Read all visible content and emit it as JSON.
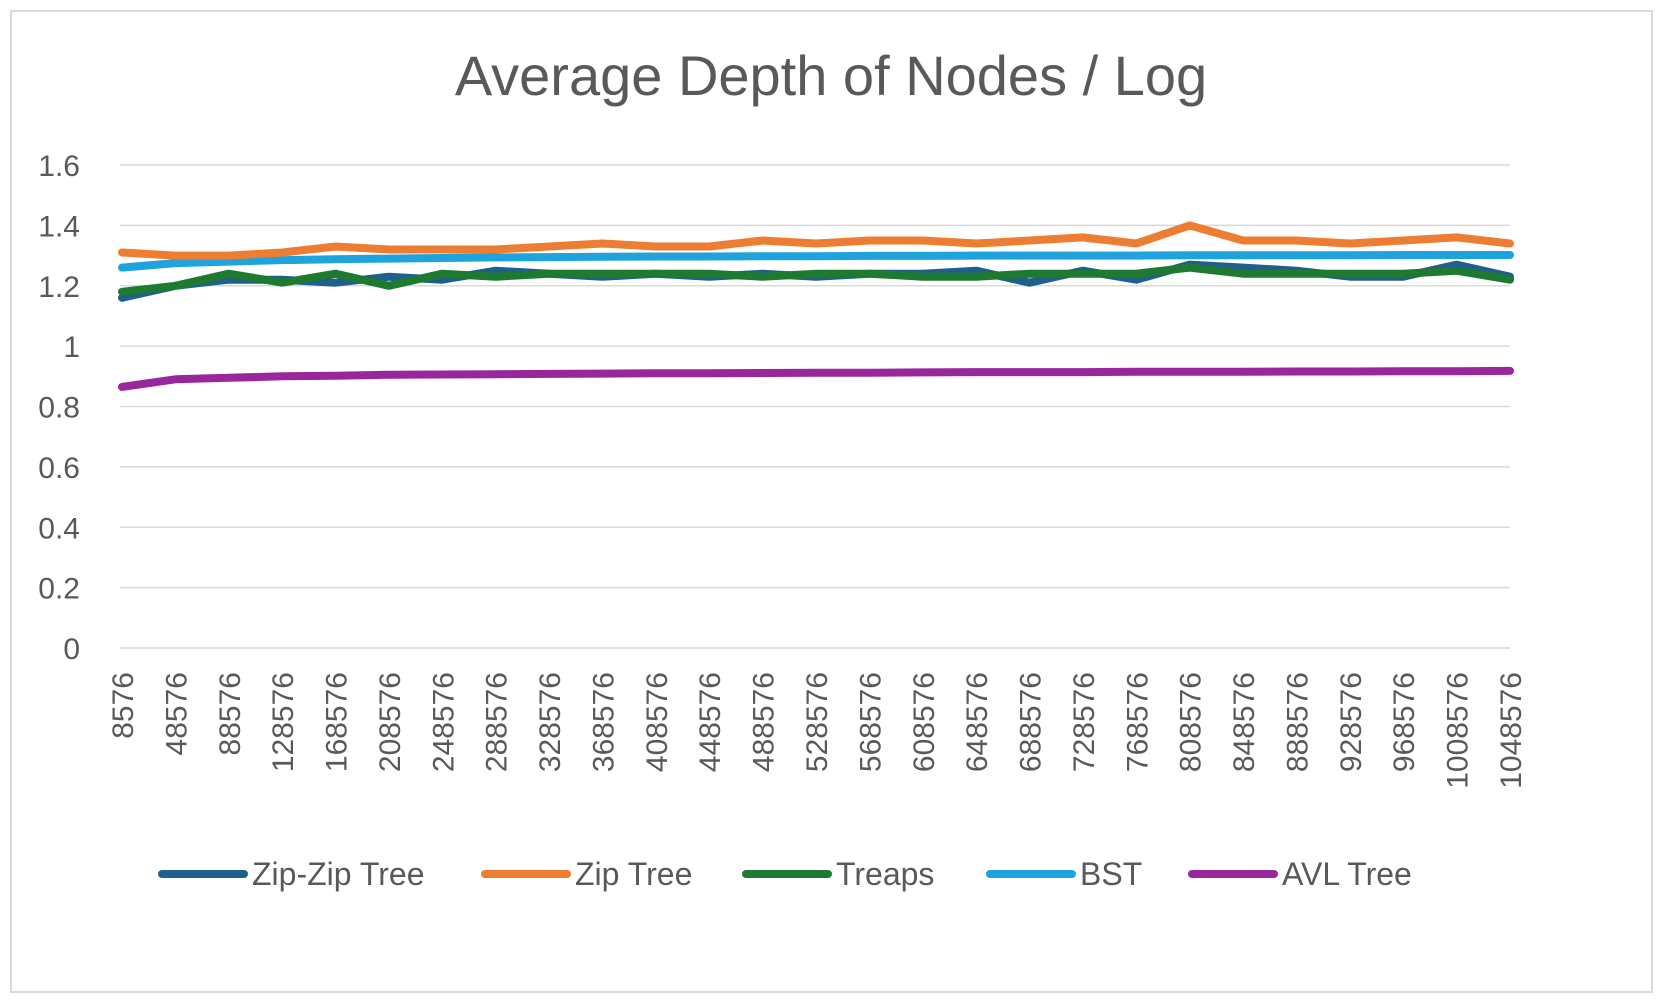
{
  "chart_data": {
    "type": "line",
    "title": "Average Depth of Nodes / Log",
    "xlabel": "",
    "ylabel": "",
    "ylim": [
      0,
      1.6
    ],
    "yticks": [
      "0",
      "0.2",
      "0.4",
      "0.6",
      "0.8",
      "1",
      "1.2",
      "1.4",
      "1.6"
    ],
    "xticks": [
      "8576",
      "48576",
      "88576",
      "128576",
      "168576",
      "208576",
      "248576",
      "288576",
      "328576",
      "368576",
      "408576",
      "448576",
      "488576",
      "528576",
      "568576",
      "608576",
      "648576",
      "688576",
      "728576",
      "768576",
      "808576",
      "848576",
      "888576",
      "928576",
      "968576",
      "1008576",
      "1048576"
    ],
    "x_start": 8576,
    "x_end": 1048576,
    "grid": true,
    "legend_position": "bottom",
    "series": [
      {
        "name": "Zip-Zip Tree",
        "color": "#1f5f8b",
        "x": [
          8576,
          48576,
          88576,
          128576,
          168576,
          208576,
          248576,
          288576,
          328576,
          368576,
          408576,
          448576,
          488576,
          528576,
          568576,
          608576,
          648576,
          688576,
          728576,
          768576,
          808576,
          848576,
          888576,
          928576,
          968576,
          1008576,
          1048576
        ],
        "values": [
          1.16,
          1.2,
          1.22,
          1.22,
          1.21,
          1.23,
          1.22,
          1.25,
          1.24,
          1.23,
          1.24,
          1.23,
          1.24,
          1.23,
          1.24,
          1.24,
          1.25,
          1.21,
          1.25,
          1.22,
          1.27,
          1.26,
          1.25,
          1.23,
          1.23,
          1.27,
          1.23
        ]
      },
      {
        "name": "Zip Tree",
        "color": "#ed7d31",
        "x": [
          8576,
          48576,
          88576,
          128576,
          168576,
          208576,
          248576,
          288576,
          328576,
          368576,
          408576,
          448576,
          488576,
          528576,
          568576,
          608576,
          648576,
          688576,
          728576,
          768576,
          808576,
          848576,
          888576,
          928576,
          968576,
          1008576,
          1048576
        ],
        "values": [
          1.31,
          1.3,
          1.3,
          1.31,
          1.33,
          1.32,
          1.32,
          1.32,
          1.33,
          1.34,
          1.33,
          1.33,
          1.35,
          1.34,
          1.35,
          1.35,
          1.34,
          1.35,
          1.36,
          1.34,
          1.4,
          1.35,
          1.35,
          1.34,
          1.35,
          1.36,
          1.34
        ]
      },
      {
        "name": "Treaps",
        "color": "#1e7a30",
        "x": [
          8576,
          48576,
          88576,
          128576,
          168576,
          208576,
          248576,
          288576,
          328576,
          368576,
          408576,
          448576,
          488576,
          528576,
          568576,
          608576,
          648576,
          688576,
          728576,
          768576,
          808576,
          848576,
          888576,
          928576,
          968576,
          1008576,
          1048576
        ],
        "values": [
          1.18,
          1.2,
          1.24,
          1.21,
          1.24,
          1.2,
          1.24,
          1.23,
          1.24,
          1.24,
          1.24,
          1.24,
          1.23,
          1.24,
          1.24,
          1.23,
          1.23,
          1.24,
          1.24,
          1.24,
          1.26,
          1.24,
          1.24,
          1.24,
          1.24,
          1.25,
          1.22
        ]
      },
      {
        "name": "BST",
        "color": "#1ea3dd",
        "x": [
          8576,
          48576,
          88576,
          128576,
          168576,
          208576,
          248576,
          288576,
          328576,
          368576,
          408576,
          448576,
          488576,
          528576,
          568576,
          608576,
          648576,
          688576,
          728576,
          768576,
          808576,
          848576,
          888576,
          928576,
          968576,
          1008576,
          1048576
        ],
        "values": [
          1.26,
          1.275,
          1.28,
          1.285,
          1.288,
          1.29,
          1.292,
          1.294,
          1.295,
          1.296,
          1.297,
          1.297,
          1.298,
          1.298,
          1.299,
          1.299,
          1.3,
          1.3,
          1.3,
          1.3,
          1.301,
          1.301,
          1.301,
          1.301,
          1.302,
          1.302,
          1.302
        ]
      },
      {
        "name": "AVL Tree",
        "color": "#97279a",
        "x": [
          8576,
          48576,
          88576,
          128576,
          168576,
          208576,
          248576,
          288576,
          328576,
          368576,
          408576,
          448576,
          488576,
          528576,
          568576,
          608576,
          648576,
          688576,
          728576,
          768576,
          808576,
          848576,
          888576,
          928576,
          968576,
          1008576,
          1048576
        ],
        "values": [
          0.865,
          0.89,
          0.895,
          0.9,
          0.902,
          0.905,
          0.906,
          0.907,
          0.908,
          0.909,
          0.91,
          0.91,
          0.911,
          0.912,
          0.912,
          0.913,
          0.914,
          0.914,
          0.914,
          0.915,
          0.915,
          0.915,
          0.916,
          0.916,
          0.917,
          0.917,
          0.918
        ]
      }
    ]
  }
}
